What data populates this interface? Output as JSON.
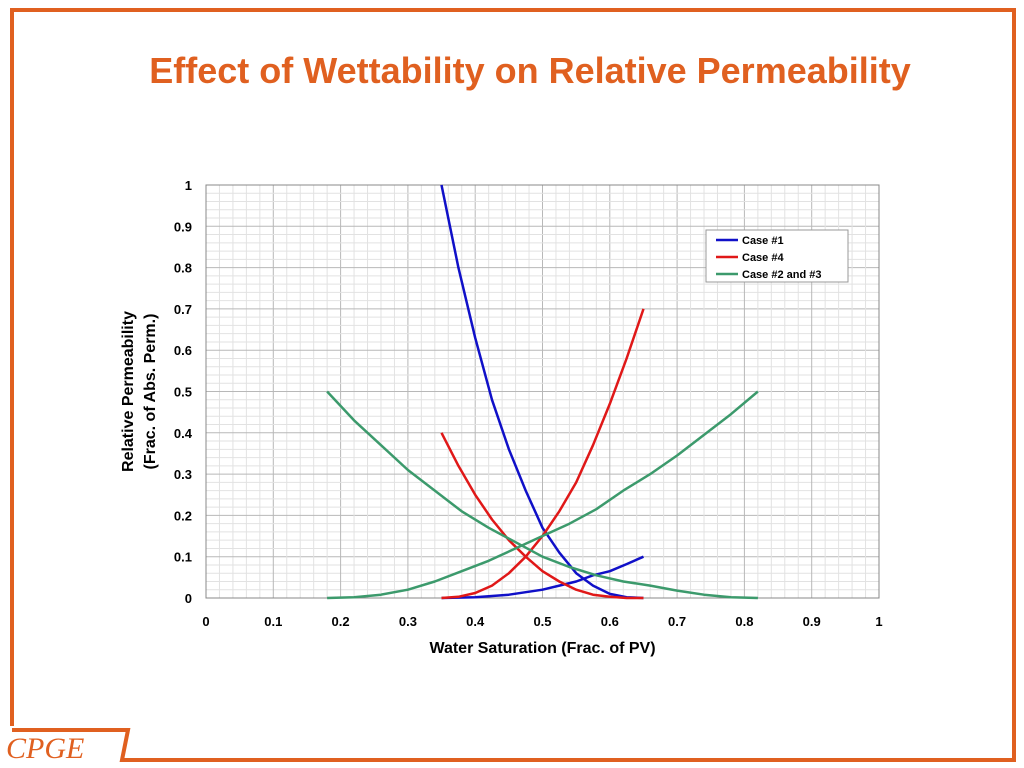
{
  "title": "Effect of Wettability on Relative Permeability",
  "logo_text": "CPGE",
  "colors": {
    "accent": "#e06020"
  },
  "chart_data": {
    "type": "line",
    "xlabel": "Water Saturation (Frac. of PV)",
    "ylabel_lines": [
      "Relative Permeability",
      "(Frac. of Abs. Perm.)"
    ],
    "xlim": [
      0,
      1
    ],
    "ylim": [
      0,
      1
    ],
    "x_ticks": [
      "0",
      "0.1",
      "0.2",
      "0.3",
      "0.4",
      "0.5",
      "0.6",
      "0.7",
      "0.8",
      "0.9",
      "1"
    ],
    "y_ticks": [
      "0",
      "0.1",
      "0.2",
      "0.3",
      "0.4",
      "0.5",
      "0.6",
      "0.7",
      "0.8",
      "0.9",
      "1"
    ],
    "grid": true,
    "legend_position": "top-right",
    "legend": [
      {
        "label": "Case #1",
        "color": "#1010c8"
      },
      {
        "label": "Case #4",
        "color": "#e01818"
      },
      {
        "label": "Case #2 and #3",
        "color": "#3c9a6c"
      }
    ],
    "series": [
      {
        "color": "#1010c8",
        "x": [
          0.35,
          0.375,
          0.4,
          0.425,
          0.45,
          0.475,
          0.5,
          0.525,
          0.55,
          0.575,
          0.6,
          0.625,
          0.65
        ],
        "y": [
          1.0,
          0.8,
          0.63,
          0.48,
          0.36,
          0.26,
          0.17,
          0.11,
          0.06,
          0.03,
          0.01,
          0.002,
          0.0
        ]
      },
      {
        "color": "#1010c8",
        "x": [
          0.35,
          0.4,
          0.45,
          0.5,
          0.525,
          0.55,
          0.575,
          0.6,
          0.625,
          0.65
        ],
        "y": [
          0.0,
          0.002,
          0.008,
          0.02,
          0.03,
          0.04,
          0.055,
          0.065,
          0.082,
          0.1
        ]
      },
      {
        "color": "#e01818",
        "x": [
          0.35,
          0.375,
          0.4,
          0.425,
          0.45,
          0.475,
          0.5,
          0.525,
          0.55,
          0.575,
          0.6,
          0.625,
          0.65
        ],
        "y": [
          0.4,
          0.32,
          0.25,
          0.19,
          0.14,
          0.1,
          0.065,
          0.04,
          0.02,
          0.008,
          0.003,
          0.0,
          0.0
        ]
      },
      {
        "color": "#e01818",
        "x": [
          0.35,
          0.375,
          0.4,
          0.425,
          0.45,
          0.475,
          0.5,
          0.525,
          0.55,
          0.575,
          0.6,
          0.625,
          0.65
        ],
        "y": [
          0.0,
          0.003,
          0.012,
          0.03,
          0.06,
          0.1,
          0.15,
          0.21,
          0.28,
          0.37,
          0.47,
          0.58,
          0.7
        ]
      },
      {
        "color": "#3c9a6c",
        "x": [
          0.18,
          0.22,
          0.26,
          0.3,
          0.34,
          0.38,
          0.42,
          0.46,
          0.5,
          0.54,
          0.58,
          0.62,
          0.66,
          0.7,
          0.74,
          0.78,
          0.82
        ],
        "y": [
          0.5,
          0.43,
          0.37,
          0.31,
          0.26,
          0.21,
          0.17,
          0.135,
          0.1,
          0.075,
          0.055,
          0.04,
          0.03,
          0.018,
          0.008,
          0.002,
          0.0
        ]
      },
      {
        "color": "#3c9a6c",
        "x": [
          0.18,
          0.22,
          0.26,
          0.3,
          0.34,
          0.38,
          0.42,
          0.46,
          0.5,
          0.54,
          0.58,
          0.62,
          0.66,
          0.7,
          0.74,
          0.78,
          0.82
        ],
        "y": [
          0.0,
          0.002,
          0.008,
          0.02,
          0.04,
          0.065,
          0.09,
          0.12,
          0.15,
          0.18,
          0.215,
          0.26,
          0.3,
          0.345,
          0.395,
          0.445,
          0.5
        ]
      }
    ]
  }
}
